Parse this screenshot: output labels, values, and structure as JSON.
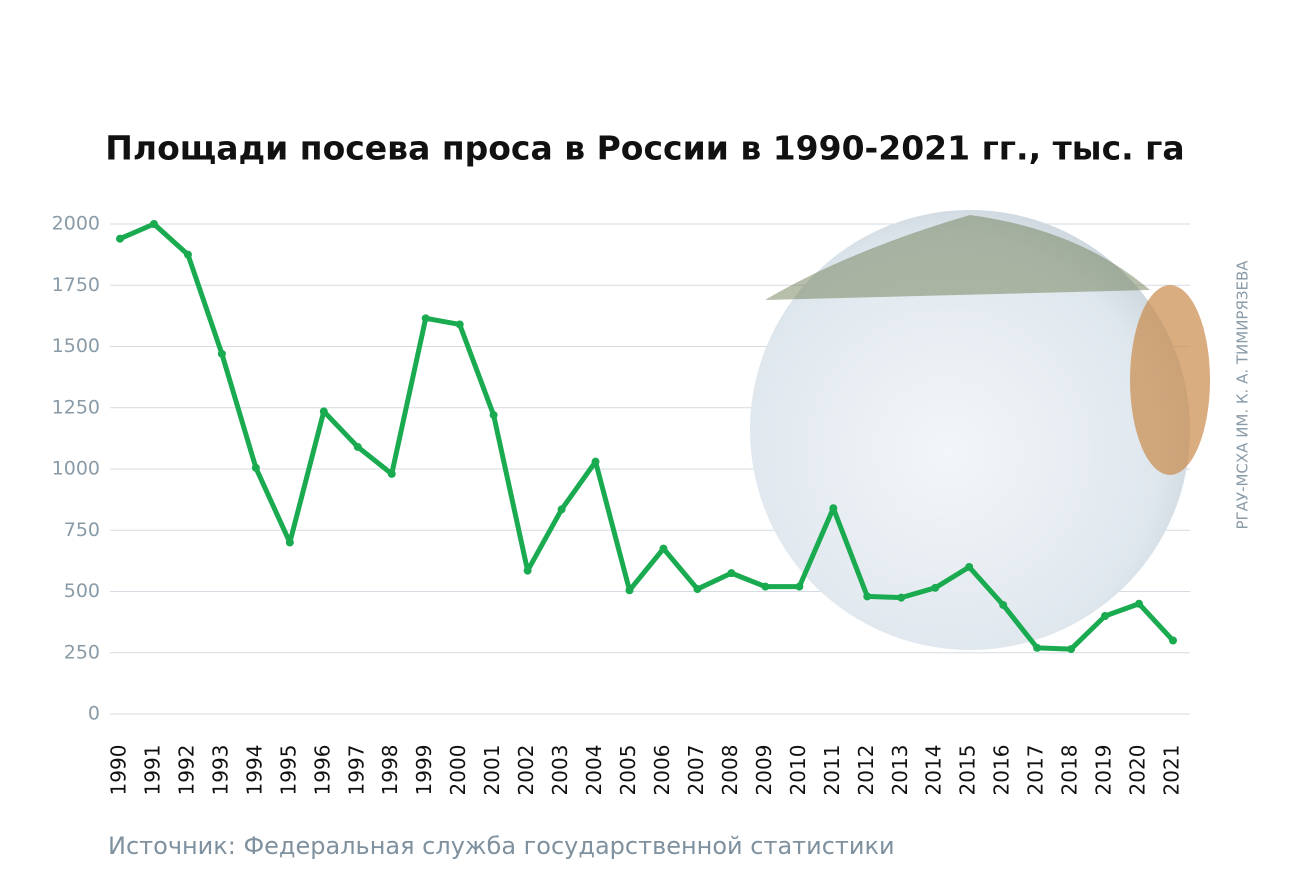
{
  "chart_data": {
    "type": "line",
    "title": "Площади посева проса в России в 1990-2021 гг., тыс. га",
    "categories": [
      "1990",
      "1991",
      "1992",
      "1993",
      "1994",
      "1995",
      "1996",
      "1997",
      "1998",
      "1999",
      "2000",
      "2001",
      "2002",
      "2003",
      "2004",
      "2005",
      "2006",
      "2007",
      "2008",
      "2009",
      "2010",
      "2011",
      "2012",
      "2013",
      "2014",
      "2015",
      "2016",
      "2017",
      "2018",
      "2019",
      "2020",
      "2021"
    ],
    "series": [
      {
        "name": "Площади посева проса",
        "color": "#1aaa50",
        "values": [
          1940,
          2000,
          1875,
          1470,
          1005,
          700,
          1235,
          1090,
          980,
          1615,
          1590,
          1220,
          585,
          835,
          1030,
          505,
          675,
          510,
          575,
          520,
          520,
          840,
          480,
          475,
          515,
          600,
          445,
          270,
          265,
          400,
          450,
          300
        ]
      }
    ],
    "ylim": [
      0,
      2000
    ],
    "yticks": [
      0,
      250,
      500,
      750,
      1000,
      1250,
      1500,
      1750,
      2000
    ],
    "grid": true,
    "photo_credit": "РГАУ-МСХА ИМ. К. А. ТИМИРЯЗЕВА",
    "source": "Источник: Федеральная служба государственной статистики"
  }
}
